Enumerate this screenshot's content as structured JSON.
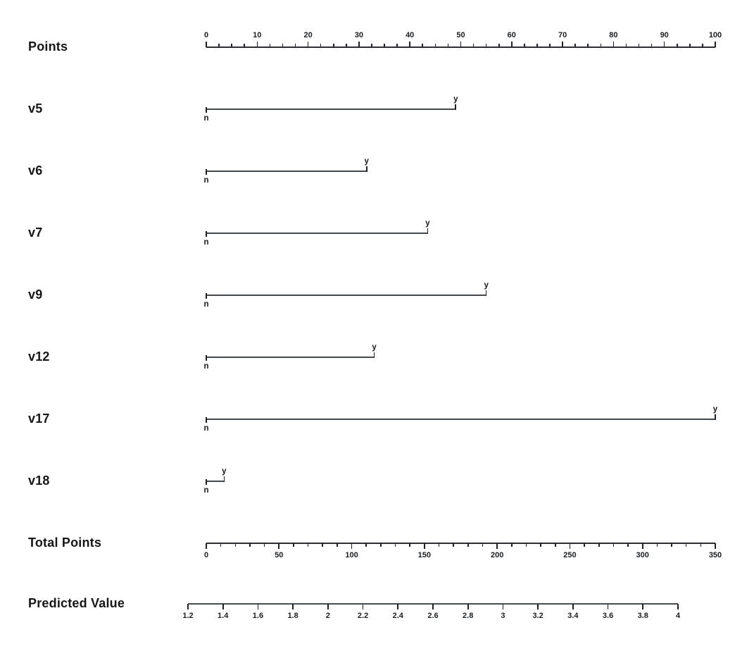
{
  "chart_data": {
    "type": "nomogram",
    "title": "",
    "points_axis": {
      "label": "Points",
      "min": 0,
      "max": 100,
      "major_tick_step": 10,
      "minor_tick_step": 2.5,
      "tick_labels": [
        "0",
        "10",
        "20",
        "30",
        "40",
        "50",
        "60",
        "70",
        "80",
        "90",
        "100"
      ],
      "tick_side": "up",
      "label_side": "above"
    },
    "variables": [
      {
        "name": "v5",
        "levels": [
          {
            "label": "n",
            "points": 0
          },
          {
            "label": "y",
            "points": 49
          }
        ]
      },
      {
        "name": "v6",
        "levels": [
          {
            "label": "n",
            "points": 0
          },
          {
            "label": "y",
            "points": 31.5
          }
        ]
      },
      {
        "name": "v7",
        "levels": [
          {
            "label": "n",
            "points": 0
          },
          {
            "label": "y",
            "points": 43.5
          }
        ]
      },
      {
        "name": "v9",
        "levels": [
          {
            "label": "n",
            "points": 0
          },
          {
            "label": "y",
            "points": 55
          }
        ]
      },
      {
        "name": "v12",
        "levels": [
          {
            "label": "n",
            "points": 0
          },
          {
            "label": "y",
            "points": 33
          }
        ]
      },
      {
        "name": "v17",
        "levels": [
          {
            "label": "n",
            "points": 0
          },
          {
            "label": "y",
            "points": 100
          }
        ]
      },
      {
        "name": "v18",
        "levels": [
          {
            "label": "n",
            "points": 0
          },
          {
            "label": "y",
            "points": 3.5
          }
        ]
      }
    ],
    "total_points_axis": {
      "label": "Total Points",
      "min": 0,
      "max": 350,
      "major_tick_step": 50,
      "minor_tick_step": 10,
      "tick_labels": [
        "0",
        "50",
        "100",
        "150",
        "200",
        "250",
        "300",
        "350"
      ],
      "tick_side": "down",
      "label_side": "below"
    },
    "predicted_value_axis": {
      "label": "Predicted Value",
      "min": 1.2,
      "max": 4,
      "tick_step": 0.2,
      "tick_labels": [
        "1.2",
        "1.4",
        "1.6",
        "1.8",
        "2",
        "2.2",
        "2.4",
        "2.6",
        "2.8",
        "3",
        "3.2",
        "3.4",
        "3.6",
        "3.8",
        "4"
      ],
      "tick_side": "down",
      "label_side": "below"
    },
    "colors": {
      "text": "#161616",
      "axis_line": "#2b2f33",
      "variable_line": "#43484c",
      "tick": "#1d2124",
      "background": "#ffffff"
    }
  }
}
